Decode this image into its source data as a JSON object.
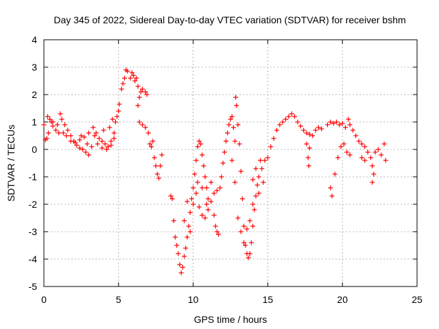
{
  "chart_data": {
    "type": "scatter",
    "title": "Day 345 of 2022, Sidereal Day-to-day VTEC variation (SDTVAR) for receiver bshm",
    "xlabel": "GPS time / hours",
    "ylabel": "SDTVAR / TECUs",
    "xlim": [
      0,
      25
    ],
    "ylim": [
      -5,
      4
    ],
    "xticks": [
      "0",
      "5",
      "10",
      "15",
      "20",
      "25"
    ],
    "yticks": [
      "-5",
      "-4",
      "-3",
      "-2",
      "-1",
      "0",
      "1",
      "2",
      "3",
      "4"
    ],
    "grid": true,
    "marker": "+",
    "color": "#ff0000",
    "series": [
      {
        "name": "SDTVAR",
        "points": [
          [
            0.0,
            0.9
          ],
          [
            0.1,
            0.35
          ],
          [
            0.2,
            0.4
          ],
          [
            0.25,
            1.2
          ],
          [
            0.4,
            1.1
          ],
          [
            0.5,
            1.0
          ],
          [
            0.6,
            0.85
          ],
          [
            0.8,
            0.7
          ],
          [
            1.0,
            0.6
          ],
          [
            1.1,
            1.3
          ],
          [
            1.2,
            1.1
          ],
          [
            1.4,
            0.9
          ],
          [
            1.6,
            0.7
          ],
          [
            1.8,
            0.5
          ],
          [
            2.0,
            0.3
          ],
          [
            2.2,
            0.15
          ],
          [
            2.4,
            0.05
          ],
          [
            2.6,
            0.0
          ],
          [
            2.8,
            -0.1
          ],
          [
            3.0,
            -0.2
          ],
          [
            1.5,
            0.5
          ],
          [
            1.8,
            0.3
          ],
          [
            2.1,
            0.25
          ],
          [
            2.4,
            0.35
          ],
          [
            2.7,
            0.45
          ],
          [
            3.0,
            0.6
          ],
          [
            3.2,
            0.1
          ],
          [
            3.3,
            0.8
          ],
          [
            3.5,
            0.6
          ],
          [
            3.7,
            0.4
          ],
          [
            3.9,
            0.3
          ],
          [
            4.1,
            0.2
          ],
          [
            4.3,
            0.1
          ],
          [
            4.5,
            0.3
          ],
          [
            4.7,
            0.6
          ],
          [
            4.8,
            1.0
          ],
          [
            4.9,
            1.2
          ],
          [
            5.0,
            1.4
          ],
          [
            5.05,
            1.65
          ],
          [
            3.6,
            0.2
          ],
          [
            3.9,
            0.05
          ],
          [
            4.2,
            0.0
          ],
          [
            4.5,
            0.15
          ],
          [
            4.7,
            0.4
          ],
          [
            5.2,
            2.2
          ],
          [
            5.3,
            2.4
          ],
          [
            5.4,
            2.6
          ],
          [
            5.5,
            2.9
          ],
          [
            5.6,
            2.85
          ],
          [
            5.8,
            2.6
          ],
          [
            5.9,
            2.8
          ],
          [
            6.0,
            2.7
          ],
          [
            6.1,
            2.5
          ],
          [
            6.2,
            2.6
          ],
          [
            6.3,
            2.3
          ],
          [
            6.4,
            1.9
          ],
          [
            6.5,
            2.1
          ],
          [
            6.6,
            2.2
          ],
          [
            6.8,
            2.1
          ],
          [
            6.9,
            2.0
          ],
          [
            6.3,
            1.6
          ],
          [
            6.4,
            1.0
          ],
          [
            6.6,
            0.9
          ],
          [
            6.8,
            0.8
          ],
          [
            7.0,
            0.6
          ],
          [
            7.1,
            0.2
          ],
          [
            7.2,
            0.1
          ],
          [
            7.3,
            0.3
          ],
          [
            7.4,
            -0.3
          ],
          [
            7.5,
            -0.6
          ],
          [
            7.6,
            -0.9
          ],
          [
            7.7,
            -1.05
          ],
          [
            7.8,
            -0.6
          ],
          [
            7.9,
            -0.2
          ],
          [
            8.5,
            -1.7
          ],
          [
            8.6,
            -1.8
          ],
          [
            8.7,
            -2.6
          ],
          [
            8.8,
            -3.2
          ],
          [
            8.9,
            -3.5
          ],
          [
            9.0,
            -3.8
          ],
          [
            9.1,
            -4.2
          ],
          [
            9.2,
            -4.5
          ],
          [
            9.3,
            -4.3
          ],
          [
            9.4,
            -3.9
          ],
          [
            9.5,
            -3.6
          ],
          [
            9.6,
            -3.2
          ],
          [
            9.7,
            -2.8
          ],
          [
            9.8,
            -2.3
          ],
          [
            9.9,
            -1.8
          ],
          [
            10.0,
            -1.4
          ],
          [
            10.1,
            -0.9
          ],
          [
            10.2,
            -0.4
          ],
          [
            10.3,
            0.1
          ],
          [
            10.4,
            0.3
          ],
          [
            10.5,
            0.2
          ],
          [
            10.6,
            -0.2
          ],
          [
            10.7,
            -0.6
          ],
          [
            10.8,
            -1.0
          ],
          [
            10.9,
            -1.4
          ],
          [
            11.0,
            -1.8
          ],
          [
            10.2,
            -1.6
          ],
          [
            10.4,
            -2.1
          ],
          [
            10.6,
            -2.4
          ],
          [
            10.8,
            -2.5
          ],
          [
            11.0,
            -2.2
          ],
          [
            11.2,
            -1.9
          ],
          [
            11.4,
            -1.6
          ],
          [
            11.5,
            -2.8
          ],
          [
            11.6,
            -3.0
          ],
          [
            11.7,
            -3.1
          ],
          [
            11.8,
            -1.4
          ],
          [
            11.9,
            -1.0
          ],
          [
            12.0,
            -0.5
          ],
          [
            12.1,
            -0.1
          ],
          [
            12.2,
            0.3
          ],
          [
            12.3,
            0.6
          ],
          [
            12.4,
            0.9
          ],
          [
            12.5,
            1.1
          ],
          [
            12.6,
            1.2
          ],
          [
            12.7,
            0.8
          ],
          [
            12.8,
            0.3
          ],
          [
            12.85,
            1.9
          ],
          [
            12.9,
            1.6
          ],
          [
            13.0,
            0.9
          ],
          [
            13.1,
            0.2
          ],
          [
            13.2,
            -0.8
          ],
          [
            13.3,
            -1.8
          ],
          [
            13.4,
            -2.8
          ],
          [
            13.5,
            -3.5
          ],
          [
            13.6,
            -3.8
          ],
          [
            13.7,
            -3.95
          ],
          [
            13.8,
            -3.8
          ],
          [
            13.9,
            -3.4
          ],
          [
            14.0,
            -2.8
          ],
          [
            14.1,
            -2.2
          ],
          [
            14.2,
            -1.7
          ],
          [
            14.3,
            -1.3
          ],
          [
            14.4,
            -1.0
          ],
          [
            14.6,
            -0.7
          ],
          [
            14.8,
            -0.4
          ],
          [
            14.0,
            -1.1
          ],
          [
            14.2,
            -0.7
          ],
          [
            14.5,
            -0.4
          ],
          [
            15.0,
            -0.3
          ],
          [
            15.2,
            0.1
          ],
          [
            15.4,
            0.4
          ],
          [
            15.6,
            0.7
          ],
          [
            15.8,
            0.9
          ],
          [
            16.0,
            1.0
          ],
          [
            16.2,
            1.1
          ],
          [
            16.4,
            1.2
          ],
          [
            16.6,
            1.3
          ],
          [
            16.8,
            1.2
          ],
          [
            17.0,
            1.0
          ],
          [
            17.2,
            0.85
          ],
          [
            17.4,
            0.7
          ],
          [
            17.6,
            0.6
          ],
          [
            17.8,
            0.55
          ],
          [
            18.0,
            0.5
          ],
          [
            18.2,
            0.7
          ],
          [
            18.4,
            0.8
          ],
          [
            18.6,
            0.75
          ],
          [
            17.6,
            0.2
          ],
          [
            17.8,
            0.05
          ],
          [
            17.7,
            -0.3
          ],
          [
            17.75,
            -0.6
          ],
          [
            19.0,
            0.9
          ],
          [
            19.2,
            1.0
          ],
          [
            19.4,
            0.95
          ],
          [
            19.6,
            1.0
          ],
          [
            19.8,
            0.9
          ],
          [
            20.0,
            0.95
          ],
          [
            20.2,
            0.8
          ],
          [
            20.4,
            1.1
          ],
          [
            20.5,
            0.9
          ],
          [
            20.7,
            0.7
          ],
          [
            20.9,
            0.5
          ],
          [
            21.1,
            0.3
          ],
          [
            21.3,
            0.2
          ],
          [
            21.5,
            0.1
          ],
          [
            21.7,
            -0.1
          ],
          [
            21.9,
            -0.3
          ],
          [
            22.0,
            -0.6
          ],
          [
            22.1,
            -0.9
          ],
          [
            22.0,
            -1.2
          ],
          [
            22.2,
            -0.1
          ],
          [
            22.4,
            0.0
          ],
          [
            22.6,
            -0.2
          ],
          [
            22.8,
            0.2
          ],
          [
            22.9,
            -0.4
          ],
          [
            19.2,
            -1.4
          ],
          [
            19.3,
            -1.7
          ],
          [
            19.5,
            -0.9
          ],
          [
            19.7,
            -0.3
          ],
          [
            19.9,
            0.1
          ],
          [
            20.1,
            0.2
          ],
          [
            20.3,
            -0.1
          ],
          [
            20.5,
            -0.2
          ],
          [
            21.3,
            -0.3
          ],
          [
            21.5,
            -0.4
          ],
          [
            0.3,
            0.6
          ],
          [
            0.6,
            1.0
          ],
          [
            0.9,
            0.9
          ],
          [
            1.3,
            0.6
          ],
          [
            2.5,
            0.5
          ],
          [
            2.9,
            0.2
          ],
          [
            3.4,
            0.5
          ],
          [
            4.0,
            0.7
          ],
          [
            4.4,
            0.8
          ],
          [
            4.6,
            1.1
          ],
          [
            9.4,
            -2.6
          ],
          [
            9.6,
            -1.9
          ],
          [
            9.8,
            -3.0
          ],
          [
            10.0,
            -2.0
          ],
          [
            10.3,
            -1.2
          ],
          [
            10.6,
            -1.4
          ],
          [
            10.9,
            -2.0
          ],
          [
            11.2,
            -1.2
          ],
          [
            11.4,
            -2.4
          ],
          [
            11.6,
            -1.5
          ],
          [
            12.6,
            -0.4
          ],
          [
            12.8,
            -1.2
          ],
          [
            13.0,
            -2.5
          ],
          [
            13.2,
            -3.0
          ],
          [
            13.4,
            -3.4
          ],
          [
            13.6,
            -2.9
          ],
          [
            13.8,
            -2.6
          ],
          [
            14.0,
            -2.0
          ],
          [
            14.4,
            -1.6
          ],
          [
            14.7,
            -1.2
          ]
        ]
      }
    ]
  }
}
